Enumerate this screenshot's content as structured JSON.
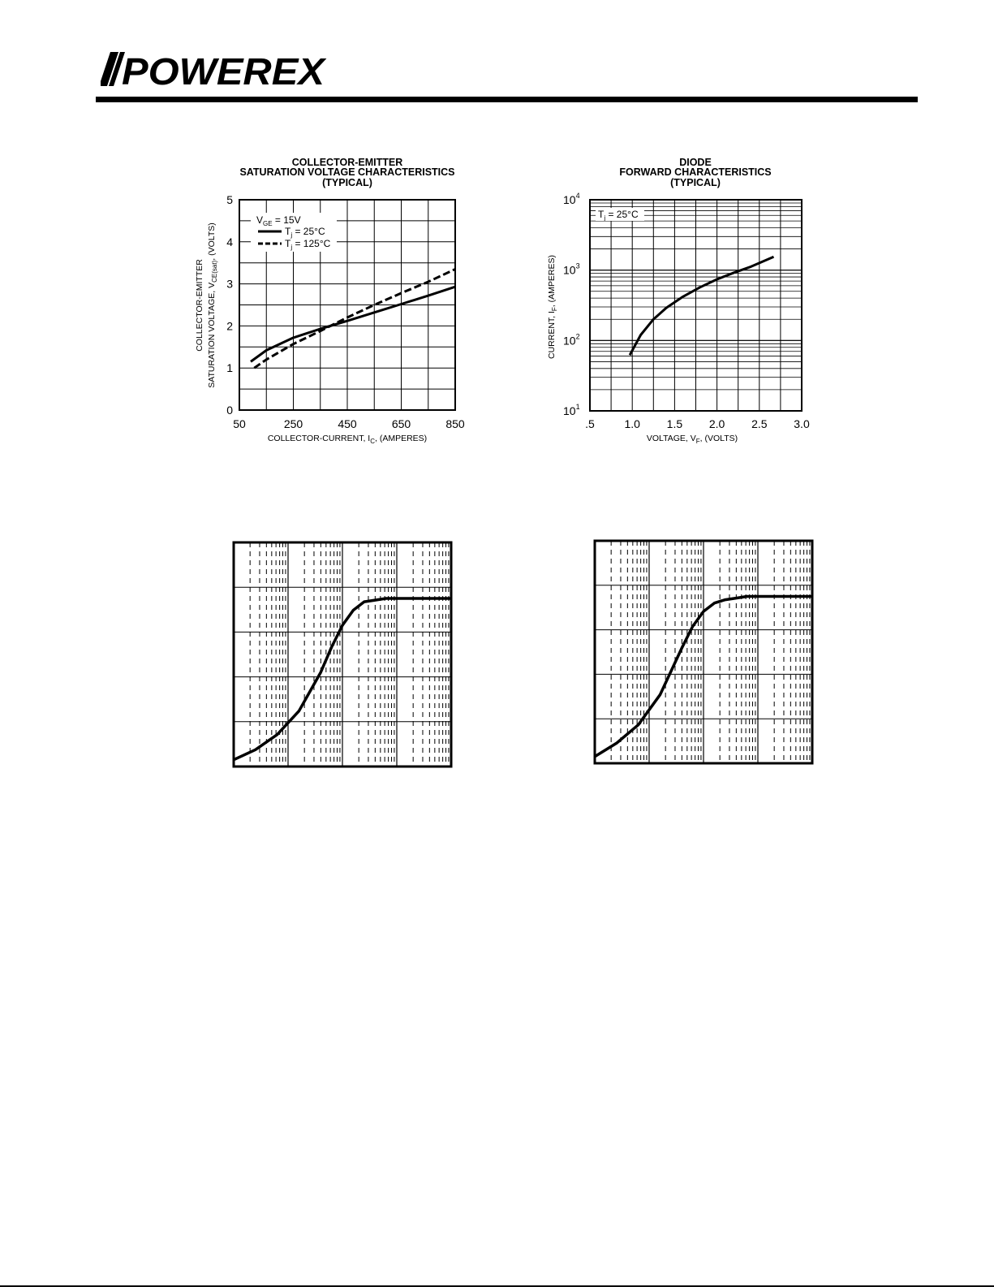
{
  "brand": {
    "name": "POWEREX"
  },
  "chart_data": [
    {
      "id": "vcesat",
      "type": "line",
      "title": [
        "COLLECTOR-EMITTER",
        "SATURATION VOLTAGE CHARACTERISTICS",
        "(TYPICAL)"
      ],
      "xlabel": {
        "main": "COLLECTOR-CURRENT, I",
        "sub": "C",
        "tail": ", (AMPERES)"
      },
      "ylabel": {
        "line1": "COLLECTOR-EMITTER",
        "line2": "SATURATION VOLTAGE, V",
        "sub": "CE(sat)",
        "tail": ", (VOLTS)"
      },
      "xlim": [
        50,
        850
      ],
      "ylim": [
        0,
        5
      ],
      "x_scale": "linear",
      "y_scale": "linear",
      "x_ticks": [
        "50",
        "250",
        "450",
        "650",
        "850"
      ],
      "y_ticks": [
        "0",
        "1",
        "2",
        "3",
        "4",
        "5"
      ],
      "grid": true,
      "legend_position": "top-left",
      "condition": {
        "main": "V",
        "sub": "GE",
        "tail": " = 15V"
      },
      "series": [
        {
          "name": {
            "main": "T",
            "sub": "j",
            "tail": " = 25°C"
          },
          "style": "solid",
          "x": [
            92,
            150,
            250,
            350,
            450,
            550,
            650,
            750,
            850
          ],
          "y": [
            1.15,
            1.42,
            1.72,
            1.93,
            2.12,
            2.32,
            2.52,
            2.72,
            2.93
          ]
        },
        {
          "name": {
            "main": "T",
            "sub": "j",
            "tail": " = 125°C"
          },
          "style": "dashed",
          "x": [
            105,
            150,
            250,
            350,
            450,
            550,
            650,
            750,
            850
          ],
          "y": [
            1.0,
            1.2,
            1.57,
            1.88,
            2.2,
            2.5,
            2.78,
            3.05,
            3.35
          ]
        }
      ]
    },
    {
      "id": "diode",
      "type": "line",
      "title": [
        "DIODE",
        "FORWARD CHARACTERISTICS",
        "(TYPICAL)"
      ],
      "xlabel": {
        "main": "VOLTAGE, V",
        "sub": "F",
        "tail": ", (VOLTS)"
      },
      "ylabel": {
        "main": "CURRENT, I",
        "sub": "F",
        "tail": ", (AMPERES)"
      },
      "xlim": [
        0.5,
        3.0
      ],
      "ylim": [
        10,
        10000
      ],
      "x_scale": "linear",
      "y_scale": "log",
      "x_ticks": [
        ".5",
        "1.0",
        "1.5",
        "2.0",
        "2.5",
        "3.0"
      ],
      "y_ticks": [
        {
          "base": "10",
          "exp": "1"
        },
        {
          "base": "10",
          "exp": "2"
        },
        {
          "base": "10",
          "exp": "3"
        },
        {
          "base": "10",
          "exp": "4"
        }
      ],
      "grid": true,
      "legend_position": "top-left",
      "condition": {
        "main": "T",
        "sub": "j",
        "tail": " = 25°C"
      },
      "series": [
        {
          "style": "solid",
          "x": [
            0.97,
            1.1,
            1.25,
            1.4,
            1.6,
            1.8,
            2.0,
            2.2,
            2.4,
            2.67
          ],
          "y": [
            62,
            120,
            200,
            290,
            420,
            570,
            740,
            920,
            1120,
            1550
          ]
        }
      ]
    },
    {
      "id": "blank-left",
      "type": "line",
      "title": "",
      "grid": true,
      "series": [
        {
          "style": "solid",
          "x": [
            0,
            0.1,
            0.2,
            0.3,
            0.4,
            0.45,
            0.5,
            0.55,
            0.6,
            0.65,
            0.7,
            0.8,
            0.9,
            1.0
          ],
          "y": [
            0.04,
            0.1,
            0.19,
            0.33,
            0.56,
            0.71,
            0.84,
            0.93,
            0.98,
            0.99,
            1.0,
            1.0,
            1.0,
            1.0
          ]
        }
      ]
    },
    {
      "id": "blank-right",
      "type": "line",
      "title": "",
      "grid": true,
      "series": [
        {
          "style": "solid",
          "x": [
            0,
            0.1,
            0.2,
            0.3,
            0.4,
            0.45,
            0.5,
            0.55,
            0.6,
            0.65,
            0.7,
            0.8,
            0.9,
            1.0
          ],
          "y": [
            0.04,
            0.12,
            0.23,
            0.41,
            0.69,
            0.82,
            0.91,
            0.96,
            0.98,
            0.99,
            1.0,
            1.0,
            1.0,
            1.0
          ]
        }
      ]
    }
  ]
}
